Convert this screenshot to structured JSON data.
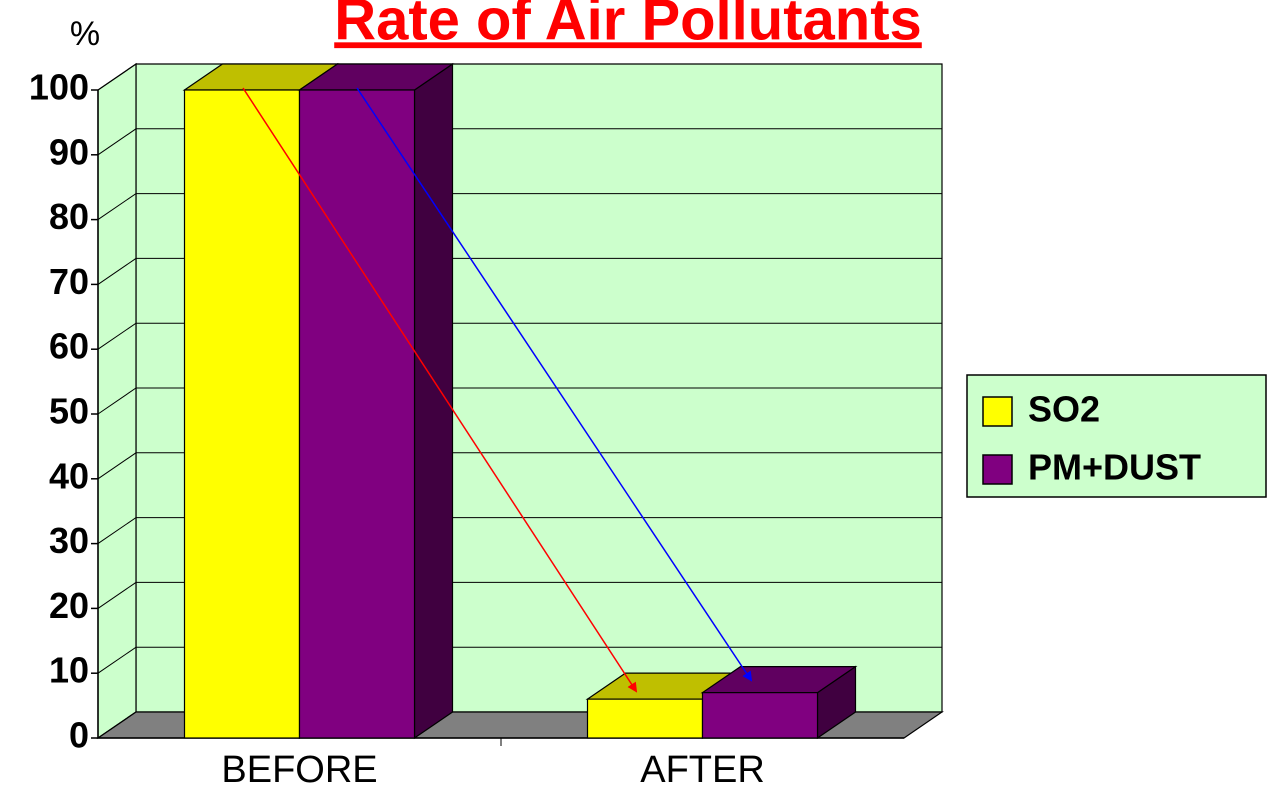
{
  "chart_data": {
    "type": "bar3d",
    "title": "Rate of Air Pollutants",
    "y_axis_label": "%",
    "categories": [
      "BEFORE",
      "AFTER"
    ],
    "series": [
      {
        "name": "SO2",
        "color": "#ffff00",
        "values": [
          100,
          6
        ]
      },
      {
        "name": "PM+DUST",
        "color": "#800080",
        "values": [
          100,
          7
        ]
      }
    ],
    "ylim": [
      0,
      100
    ],
    "yticks": [
      0,
      10,
      20,
      30,
      40,
      50,
      60,
      70,
      80,
      90,
      100
    ],
    "grid": true,
    "legend": "right"
  }
}
